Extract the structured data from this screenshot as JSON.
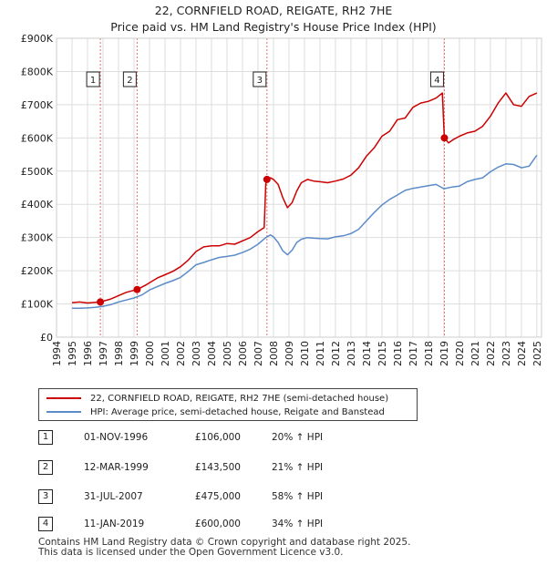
{
  "title_line1": "22, CORNFIELD ROAD, REIGATE, RH2 7HE",
  "title_line2": "Price paid vs. HM Land Registry's House Price Index (HPI)",
  "chart_data": {
    "type": "line",
    "title": "22, CORNFIELD ROAD, REIGATE, RH2 7HE — Price paid vs. HM Land Registry's House Price Index (HPI)",
    "xlabel": "",
    "ylabel": "",
    "xlim": [
      1994,
      2025.3
    ],
    "ylim": [
      0,
      900000
    ],
    "grid": true,
    "x_ticks": [
      "1994",
      "1995",
      "1996",
      "1997",
      "1998",
      "1999",
      "2000",
      "2001",
      "2002",
      "2003",
      "2004",
      "2005",
      "2006",
      "2007",
      "2008",
      "2009",
      "2010",
      "2011",
      "2012",
      "2013",
      "2014",
      "2015",
      "2016",
      "2017",
      "2018",
      "2019",
      "2020",
      "2021",
      "2022",
      "2023",
      "2024",
      "2025"
    ],
    "y_ticks": [
      0,
      100000,
      200000,
      300000,
      400000,
      500000,
      600000,
      700000,
      800000,
      900000
    ],
    "y_tick_labels": [
      "£0",
      "£100K",
      "£200K",
      "£300K",
      "£400K",
      "£500K",
      "£600K",
      "£700K",
      "£800K",
      "£900K"
    ],
    "series": [
      {
        "name": "22, CORNFIELD ROAD, REIGATE, RH2 7HE (semi-detached house)",
        "color": "#cc0000",
        "x": [
          1995.0,
          1995.5,
          1996.0,
          1996.5,
          1996.83,
          1997.5,
          1998.0,
          1998.5,
          1999.2,
          1999.8,
          2000.5,
          2001.0,
          2001.5,
          2002.0,
          2002.5,
          2003.0,
          2003.5,
          2004.0,
          2004.5,
          2005.0,
          2005.5,
          2006.0,
          2006.5,
          2007.0,
          2007.4,
          2007.5,
          2007.58,
          2007.8,
          2008.0,
          2008.3,
          2008.6,
          2008.9,
          2009.2,
          2009.5,
          2009.8,
          2010.2,
          2010.6,
          2011.0,
          2011.5,
          2012.0,
          2012.5,
          2013.0,
          2013.5,
          2014.0,
          2014.5,
          2015.0,
          2015.5,
          2016.0,
          2016.5,
          2017.0,
          2017.5,
          2018.0,
          2018.5,
          2018.9,
          2019.03,
          2019.3,
          2019.6,
          2020.0,
          2020.5,
          2021.0,
          2021.5,
          2022.0,
          2022.5,
          2023.0,
          2023.5,
          2024.0,
          2024.5,
          2025.0
        ],
        "values": [
          104000,
          106000,
          103000,
          105000,
          106000,
          115000,
          125000,
          135000,
          143500,
          158000,
          178000,
          188000,
          198000,
          212000,
          232000,
          258000,
          272000,
          275000,
          275000,
          282000,
          280000,
          290000,
          300000,
          318000,
          330000,
          460000,
          475000,
          480000,
          475000,
          460000,
          420000,
          390000,
          405000,
          440000,
          465000,
          475000,
          470000,
          468000,
          465000,
          470000,
          476000,
          488000,
          510000,
          545000,
          570000,
          605000,
          620000,
          655000,
          660000,
          692000,
          705000,
          710000,
          720000,
          735000,
          600000,
          585000,
          595000,
          605000,
          615000,
          620000,
          635000,
          665000,
          705000,
          735000,
          700000,
          695000,
          725000,
          735000
        ]
      },
      {
        "name": "HPI: Average price, semi-detached house, Reigate and Banstead",
        "color": "#5b8cc8",
        "x": [
          1995.0,
          1995.5,
          1996.0,
          1996.5,
          1997.0,
          1997.5,
          1998.0,
          1998.5,
          1999.0,
          1999.5,
          2000.0,
          2000.5,
          2001.0,
          2001.5,
          2002.0,
          2002.5,
          2003.0,
          2003.5,
          2004.0,
          2004.5,
          2005.0,
          2005.5,
          2006.0,
          2006.5,
          2007.0,
          2007.5,
          2007.8,
          2008.0,
          2008.3,
          2008.6,
          2008.9,
          2009.2,
          2009.5,
          2009.8,
          2010.2,
          2010.6,
          2011.0,
          2011.5,
          2012.0,
          2012.5,
          2013.0,
          2013.5,
          2014.0,
          2014.5,
          2015.0,
          2015.5,
          2016.0,
          2016.5,
          2017.0,
          2017.5,
          2018.0,
          2018.5,
          2019.0,
          2019.5,
          2020.0,
          2020.5,
          2021.0,
          2021.5,
          2022.0,
          2022.5,
          2023.0,
          2023.5,
          2024.0,
          2024.5,
          2025.0
        ],
        "values": [
          87000,
          87000,
          88000,
          90000,
          93000,
          98000,
          106000,
          112000,
          118000,
          127000,
          142000,
          152000,
          162000,
          170000,
          180000,
          198000,
          218000,
          225000,
          233000,
          240000,
          243000,
          247000,
          255000,
          265000,
          280000,
          300000,
          308000,
          302000,
          285000,
          260000,
          248000,
          262000,
          285000,
          295000,
          300000,
          298000,
          297000,
          296000,
          302000,
          305000,
          312000,
          325000,
          350000,
          375000,
          398000,
          415000,
          428000,
          442000,
          448000,
          452000,
          456000,
          460000,
          447000,
          452000,
          455000,
          468000,
          475000,
          480000,
          498000,
          512000,
          522000,
          520000,
          510000,
          515000,
          548000
        ]
      }
    ],
    "sales": [
      {
        "label": "1",
        "x": 1996.83,
        "value": 106000
      },
      {
        "label": "2",
        "x": 1999.2,
        "value": 143500
      },
      {
        "label": "3",
        "x": 2007.58,
        "value": 475000
      },
      {
        "label": "4",
        "x": 2019.03,
        "value": 600000
      }
    ]
  },
  "legend": {
    "property_label": "22, CORNFIELD ROAD, REIGATE, RH2 7HE (semi-detached house)",
    "hpi_label": "HPI: Average price, semi-detached house, Reigate and Banstead",
    "property_color": "#cc0000",
    "hpi_color": "#5b8cc8"
  },
  "sales_table": [
    {
      "num": "1",
      "date": "01-NOV-1996",
      "price": "£106,000",
      "hpi": "20% ↑ HPI"
    },
    {
      "num": "2",
      "date": "12-MAR-1999",
      "price": "£143,500",
      "hpi": "21% ↑ HPI"
    },
    {
      "num": "3",
      "date": "31-JUL-2007",
      "price": "£475,000",
      "hpi": "58% ↑ HPI"
    },
    {
      "num": "4",
      "date": "11-JAN-2019",
      "price": "£600,000",
      "hpi": "34% ↑ HPI"
    }
  ],
  "footer": {
    "line1": "Contains HM Land Registry data © Crown copyright and database right 2025.",
    "line2": "This data is licensed under the Open Government Licence v3.0."
  }
}
